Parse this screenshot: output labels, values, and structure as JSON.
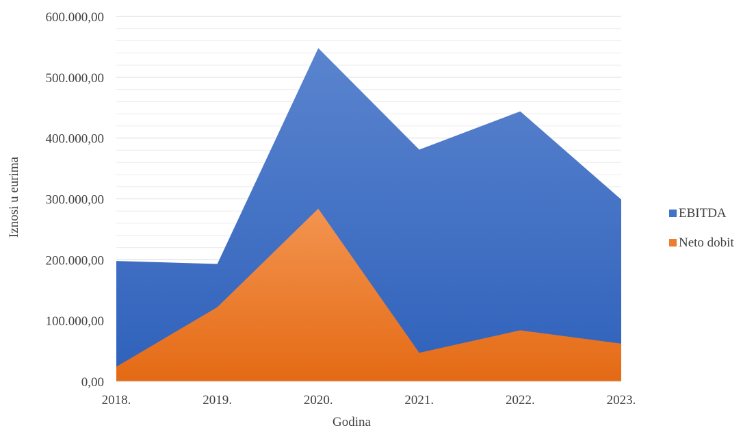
{
  "chart_data": {
    "type": "area",
    "xlabel": "Godina",
    "ylabel": "Iznosi u eurima",
    "categories": [
      "2018.",
      "2019.",
      "2020.",
      "2021.",
      "2022.",
      "2023."
    ],
    "ylim": [
      0,
      600000
    ],
    "yticks": [
      0,
      100000,
      200000,
      300000,
      400000,
      500000,
      600000
    ],
    "ytick_labels": [
      "0,00",
      "100.000,00",
      "200.000,00",
      "300.000,00",
      "400.000,00",
      "500.000,00",
      "600.000,00"
    ],
    "minor_gridlines": true,
    "legend_position": "right",
    "series": [
      {
        "name": "EBITDA",
        "color": "#4472C4",
        "values": [
          198000,
          193000,
          548000,
          381000,
          444000,
          299000
        ]
      },
      {
        "name": "Neto dobit",
        "color": "#ED7D31",
        "values": [
          24000,
          122000,
          284000,
          47000,
          84000,
          62000
        ]
      }
    ]
  }
}
